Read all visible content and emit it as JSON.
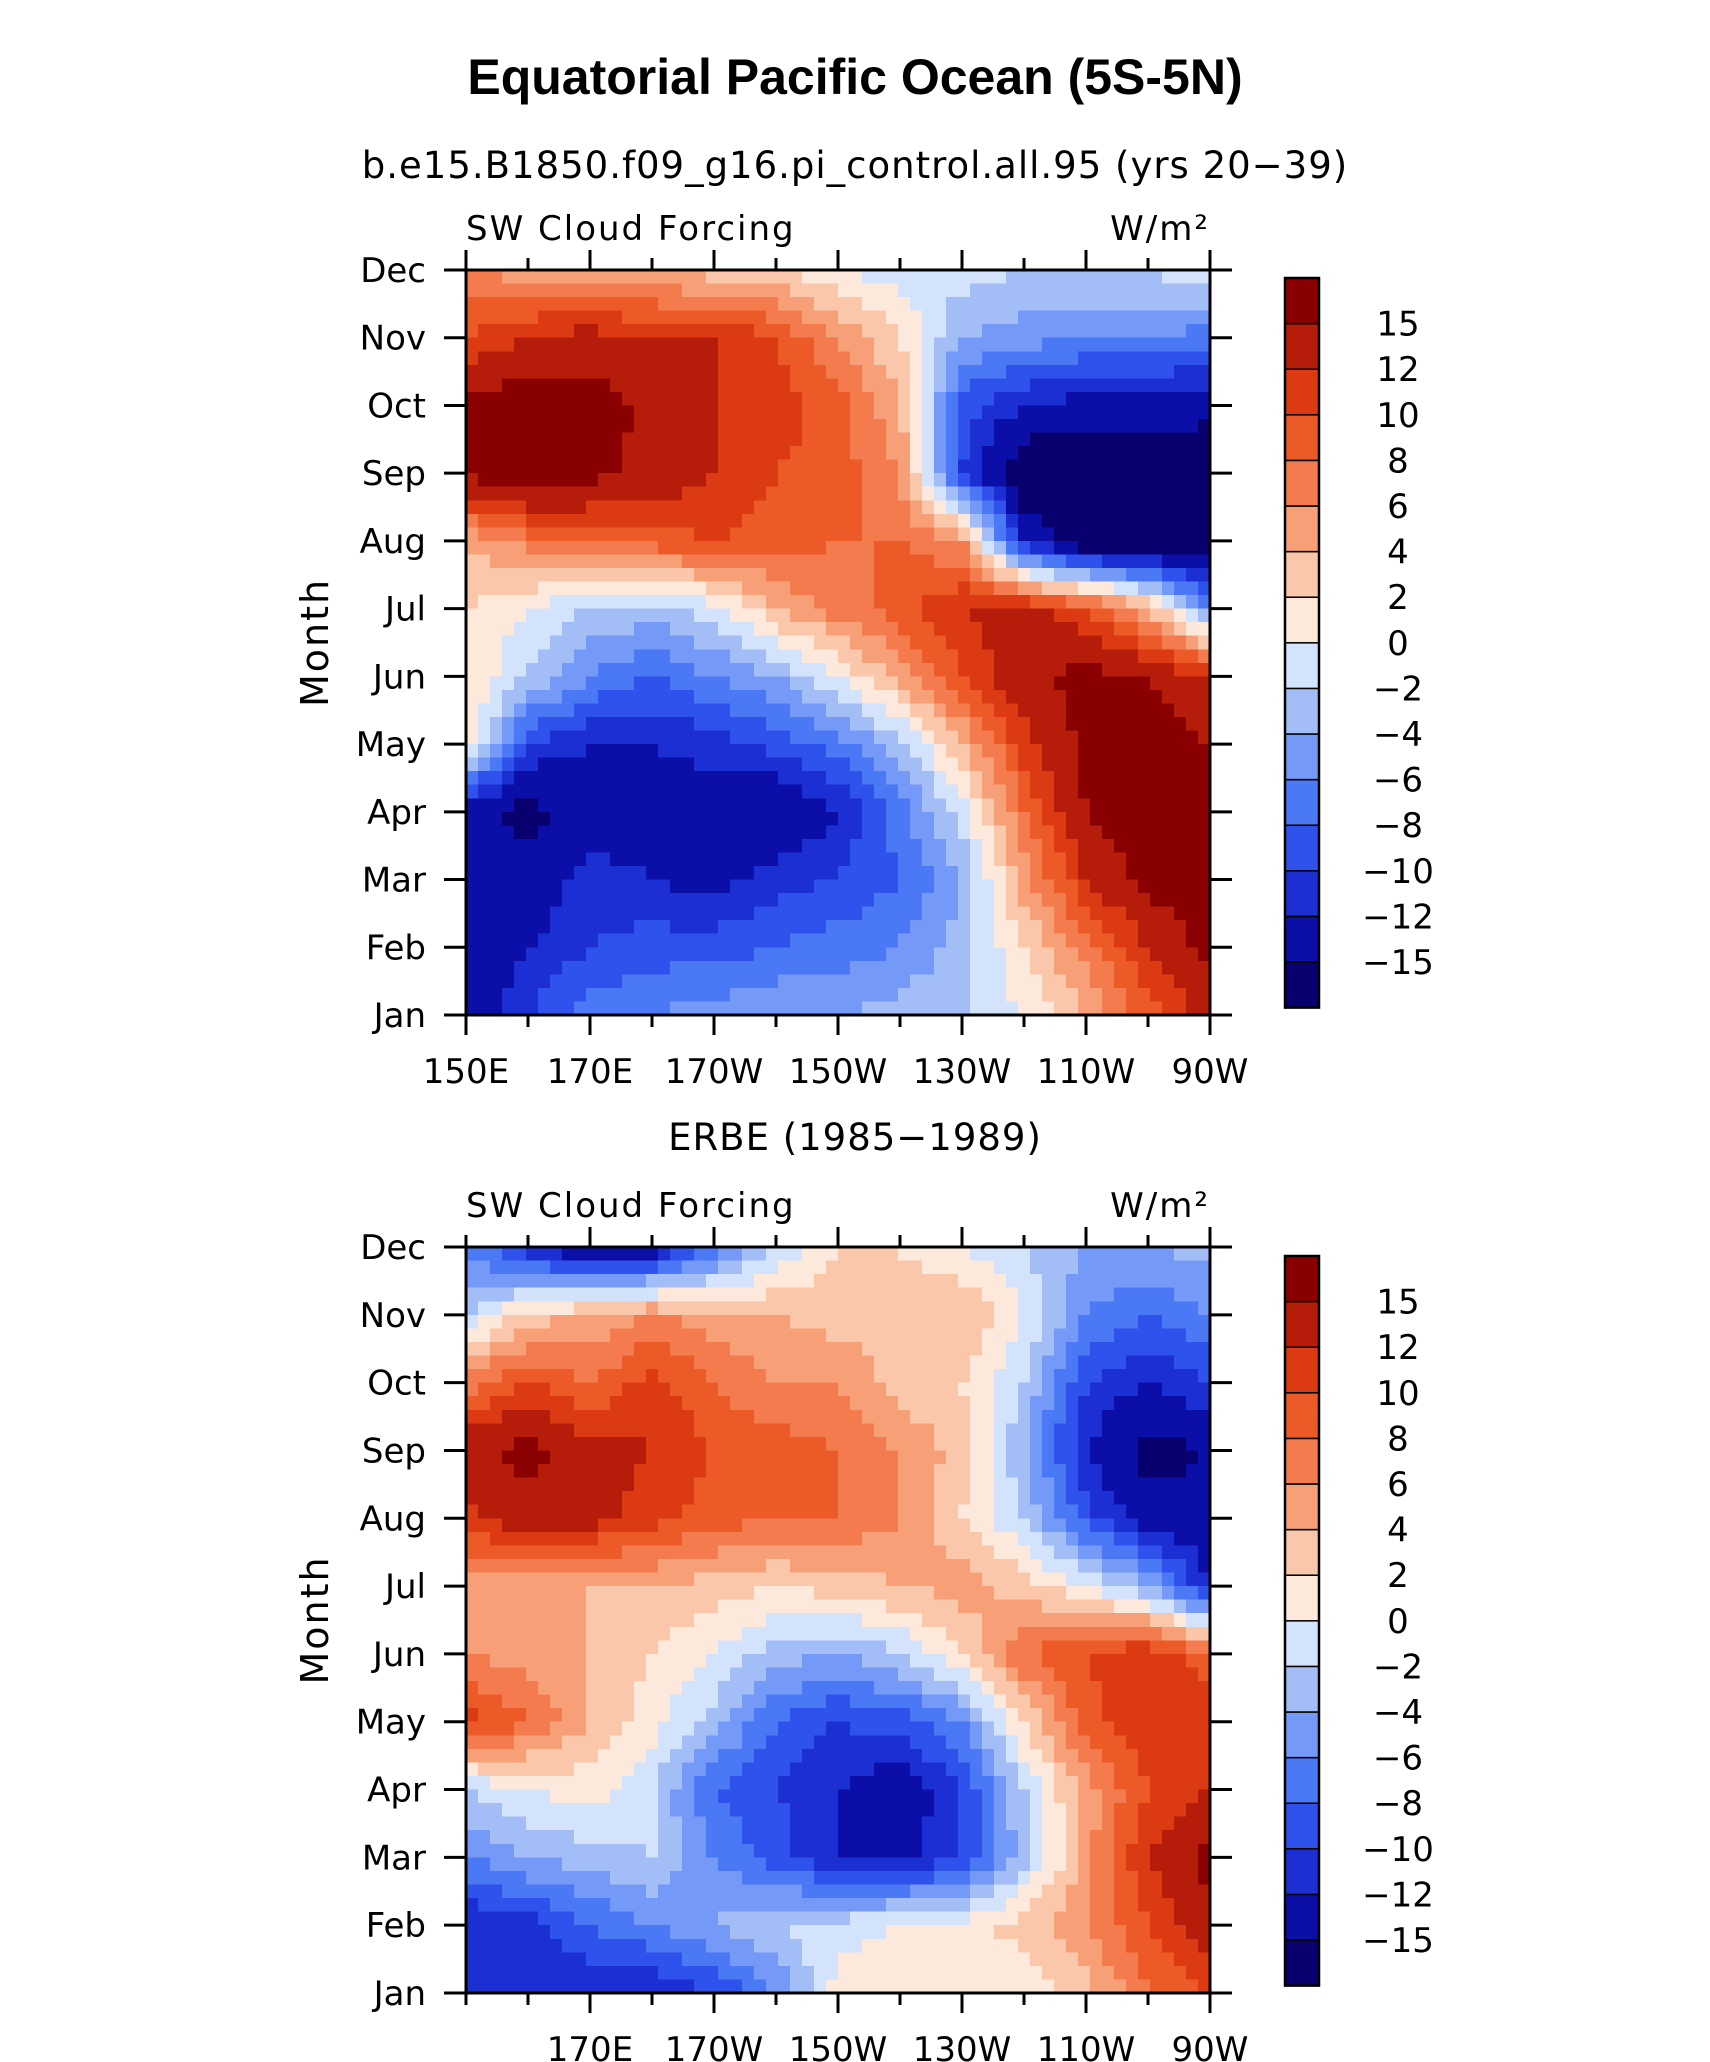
{
  "figure": {
    "title": "Equatorial Pacific Ocean (5S-5N)"
  },
  "colorscale": {
    "colors": [
      "#08006e",
      "#0b0fa8",
      "#1c2fd3",
      "#2f52ec",
      "#4b78f5",
      "#7599f6",
      "#a3bdf7",
      "#d2e3fb",
      "#fde9dc",
      "#fbc7ab",
      "#f7a077",
      "#f37b4d",
      "#ec5a27",
      "#db3a12",
      "#b51c09",
      "#8a0000"
    ],
    "levels": [
      -18,
      -15,
      -12,
      -10,
      -8,
      -6,
      -4,
      -2,
      0,
      2,
      4,
      6,
      8,
      10,
      12,
      15
    ],
    "tick_labels": [
      "15",
      "12",
      "10",
      "8",
      "6",
      "4",
      "2",
      "0",
      "−2",
      "−4",
      "−6",
      "−8",
      "−10",
      "−12",
      "−15"
    ]
  },
  "chart_data": [
    {
      "type": "heatmap",
      "subtitle": "b.e15.B1850.f09_g16.pi_control.all.95 (yrs 20−39)",
      "left_label": "SW Cloud Forcing",
      "right_label": "W/m²",
      "ylabel": "Month",
      "xlabel": "",
      "x_ticks": [
        "150E",
        "170E",
        "170W",
        "150W",
        "130W",
        "110W",
        "90W"
      ],
      "y_ticks": [
        "Jan",
        "Feb",
        "Mar",
        "Apr",
        "May",
        "Jun",
        "Jul",
        "Aug",
        "Sep",
        "Oct",
        "Nov",
        "Dec"
      ],
      "x_range": [
        "150E",
        "90W"
      ],
      "lon": [
        150,
        160,
        170,
        180,
        190,
        200,
        210,
        220,
        230,
        240,
        250,
        260,
        270
      ],
      "months": [
        "Jan",
        "Feb",
        "Mar",
        "Apr",
        "May",
        "Jun",
        "Jul",
        "Aug",
        "Sep",
        "Oct",
        "Nov",
        "Dec"
      ],
      "values": [
        [
          -14,
          -10,
          -7,
          -6,
          -5,
          -4,
          -4,
          -3,
          -2,
          0,
          4,
          9,
          13
        ],
        [
          -15,
          -12,
          -10,
          -9,
          -9,
          -8,
          -7,
          -6,
          -3,
          2,
          7,
          12,
          16
        ],
        [
          -13,
          -14,
          -11,
          -12,
          -13,
          -11,
          -10,
          -8,
          -4,
          5,
          12,
          16,
          17
        ],
        [
          -14,
          -16,
          -14,
          -13,
          -14,
          -15,
          -12,
          -7,
          -1,
          8,
          15,
          18,
          17
        ],
        [
          2,
          -10,
          -12,
          -12,
          -11,
          -9,
          -7,
          -3,
          4,
          11,
          16,
          17,
          15
        ],
        [
          2,
          -2,
          -6,
          -8,
          -6,
          -4,
          0,
          5,
          10,
          14,
          16,
          15,
          12
        ],
        [
          2,
          0,
          -2,
          -3,
          -1,
          4,
          7,
          9,
          12,
          13,
          10,
          4,
          -6
        ],
        [
          4,
          7,
          8,
          9,
          10,
          9,
          8,
          8,
          6,
          -12,
          -18,
          -18,
          -18
        ],
        [
          16,
          17,
          16,
          14,
          12,
          10,
          9,
          6,
          -10,
          -18,
          -18,
          -18,
          -18
        ],
        [
          16,
          17,
          17,
          14,
          12,
          11,
          9,
          4,
          -9,
          -12,
          -13,
          -13,
          -14
        ],
        [
          10,
          12,
          13,
          12,
          12,
          10,
          6,
          2,
          -4,
          -5,
          -6,
          -6,
          -7
        ],
        [
          6,
          5,
          5,
          4,
          3,
          2,
          0,
          -1,
          -1,
          -2,
          -2,
          -2,
          0
        ]
      ]
    },
    {
      "type": "heatmap",
      "subtitle": "ERBE (1985−1989)",
      "left_label": "SW Cloud Forcing",
      "right_label": "W/m²",
      "ylabel": "Month",
      "xlabel": "",
      "x_ticks": [
        "170E",
        "170W",
        "150W",
        "130W",
        "110W",
        "90W"
      ],
      "y_ticks": [
        "Jan",
        "Feb",
        "Mar",
        "Apr",
        "May",
        "Jun",
        "Jul",
        "Aug",
        "Sep",
        "Oct",
        "Nov",
        "Dec"
      ],
      "x_range": [
        "150E",
        "90W"
      ],
      "lon": [
        150,
        160,
        170,
        180,
        190,
        200,
        210,
        220,
        230,
        240,
        250,
        260,
        270
      ],
      "months": [
        "Jan",
        "Feb",
        "Mar",
        "Apr",
        "May",
        "Jun",
        "Jul",
        "Aug",
        "Sep",
        "Oct",
        "Nov",
        "Dec"
      ],
      "values": [
        [
          -10,
          -12,
          -12,
          -12,
          -10,
          -6,
          1,
          2,
          1,
          0,
          3,
          8,
          10
        ],
        [
          -12,
          -11,
          -8,
          -6,
          -4,
          -2,
          -1,
          0,
          1,
          3,
          6,
          10,
          14
        ],
        [
          -6,
          -4,
          -3,
          -2,
          -6,
          -9,
          -12,
          -13,
          -10,
          -3,
          5,
          12,
          16
        ],
        [
          -2,
          0,
          1,
          -2,
          -8,
          -10,
          -12,
          -14,
          -10,
          -2,
          5,
          10,
          12
        ],
        [
          11,
          8,
          4,
          1,
          -3,
          -8,
          -10,
          -9,
          -6,
          2,
          9,
          12,
          12
        ],
        [
          6,
          5,
          4,
          2,
          0,
          -3,
          -4,
          -2,
          2,
          8,
          10,
          12,
          8
        ],
        [
          5,
          5,
          4,
          4,
          3,
          2,
          3,
          4,
          5,
          3,
          0,
          -4,
          -12
        ],
        [
          11,
          14,
          13,
          11,
          9,
          8,
          8,
          6,
          2,
          -2,
          -9,
          -14,
          -14
        ],
        [
          14,
          16,
          13,
          12,
          10,
          9,
          8,
          6,
          3,
          -4,
          -12,
          -16,
          -15
        ],
        [
          7,
          10,
          8,
          11,
          8,
          6,
          6,
          3,
          2,
          -2,
          -10,
          -12,
          -10
        ],
        [
          -2,
          3,
          4,
          6,
          5,
          4,
          3,
          3,
          4,
          0,
          -6,
          -8,
          -6
        ],
        [
          -6,
          -12,
          -15,
          -14,
          -8,
          -2,
          2,
          2,
          0,
          -2,
          -4,
          -4,
          -3
        ]
      ]
    }
  ]
}
